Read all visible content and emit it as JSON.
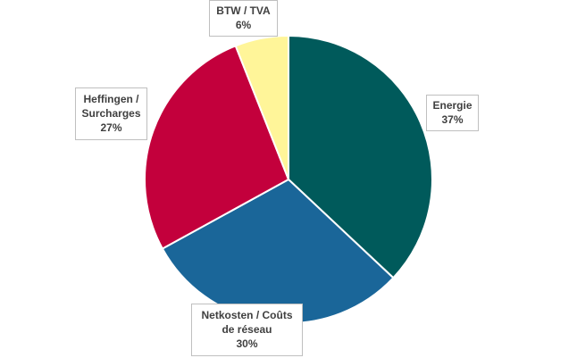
{
  "chart_data": {
    "type": "pie",
    "title": "",
    "start_angle_deg": 0,
    "direction": "clockwise",
    "slices": [
      {
        "label_lines": [
          "Energie"
        ],
        "value": 37,
        "value_label": "37%",
        "color": "#005a5b"
      },
      {
        "label_lines": [
          "Netkosten / Coûts",
          "de réseau"
        ],
        "value": 30,
        "value_label": "30%",
        "color": "#1a6699"
      },
      {
        "label_lines": [
          "Heffingen /",
          "Surcharges"
        ],
        "value": 27,
        "value_label": "27%",
        "color": "#c3003c"
      },
      {
        "label_lines": [
          "BTW / TVA"
        ],
        "value": 6,
        "value_label": "6%",
        "color": "#fff599"
      }
    ],
    "legend": "none",
    "data_labels": "callout-boxes"
  }
}
